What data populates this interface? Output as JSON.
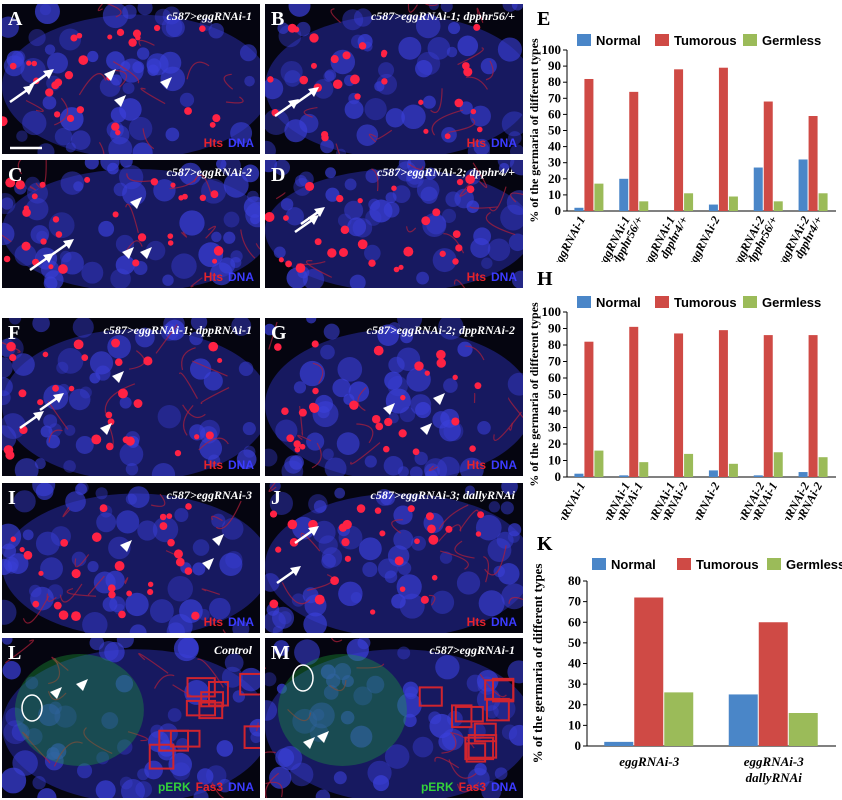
{
  "panels": [
    {
      "id": "A",
      "label": "A",
      "title": "c587>eggRNAi-1",
      "stains": [
        {
          "text": "Hts",
          "color": "red"
        },
        {
          "text": "DNA",
          "color": "blue"
        }
      ],
      "arrows": 2,
      "arrowheads": 3
    },
    {
      "id": "B",
      "label": "B",
      "title": "c587>eggRNAi-1; dpphr56/+",
      "stains": [
        {
          "text": "Hts",
          "color": "red"
        },
        {
          "text": "DNA",
          "color": "blue"
        }
      ],
      "arrows": 2,
      "arrowheads": 0
    },
    {
      "id": "C",
      "label": "C",
      "title": "c587>eggRNAi-2",
      "stains": [
        {
          "text": "Hts",
          "color": "red"
        },
        {
          "text": "DNA",
          "color": "blue"
        }
      ],
      "arrows": 2,
      "arrowheads": 3
    },
    {
      "id": "D",
      "label": "D",
      "title": "c587>eggRNAi-2; dpphr4/+",
      "stains": [
        {
          "text": "Hts",
          "color": "red"
        },
        {
          "text": "DNA",
          "color": "blue"
        }
      ],
      "arrows": 2,
      "arrowheads": 0
    },
    {
      "id": "F",
      "label": "F",
      "title": "c587>eggRNAi-1; dppRNAi-1",
      "stains": [
        {
          "text": "Hts",
          "color": "red"
        },
        {
          "text": "DNA",
          "color": "blue"
        }
      ],
      "arrows": 2,
      "arrowheads": 2
    },
    {
      "id": "G",
      "label": "G",
      "title": "c587>eggRNAi-2; dppRNAi-2",
      "stains": [
        {
          "text": "Hts",
          "color": "red"
        },
        {
          "text": "DNA",
          "color": "blue"
        }
      ],
      "arrows": 0,
      "arrowheads": 3
    },
    {
      "id": "I",
      "label": "I",
      "title": "c587>eggRNAi-3",
      "stains": [
        {
          "text": "Hts",
          "color": "red"
        },
        {
          "text": "DNA",
          "color": "blue"
        }
      ],
      "arrows": 0,
      "arrowheads": 3
    },
    {
      "id": "J",
      "label": "J",
      "title": "c587>eggRNAi-3; dallyRNAi",
      "stains": [
        {
          "text": "Hts",
          "color": "red"
        },
        {
          "text": "DNA",
          "color": "blue"
        }
      ],
      "arrows": 2,
      "arrowheads": 0
    },
    {
      "id": "L",
      "label": "L",
      "title": "Control",
      "stains": [
        {
          "text": "pERK",
          "color": "green"
        },
        {
          "text": "Fas3",
          "color": "red"
        },
        {
          "text": "DNA",
          "color": "blue"
        }
      ],
      "arrows": 0,
      "arrowheads": 2
    },
    {
      "id": "M",
      "label": "M",
      "title": "c587>eggRNAi-1",
      "stains": [
        {
          "text": "pERK",
          "color": "green"
        },
        {
          "text": "Fas3",
          "color": "red"
        },
        {
          "text": "DNA",
          "color": "blue"
        }
      ],
      "arrows": 0,
      "arrowheads": 2
    }
  ],
  "colors": {
    "normal": "#4a86c8",
    "tumorous": "#cf4a45",
    "germless": "#9bbb59"
  },
  "chart_data": [
    {
      "panel": "E",
      "type": "bar",
      "ylabel": "% of the germaria of different types",
      "ylim": [
        0,
        100
      ],
      "yticks": [
        0,
        10,
        20,
        30,
        40,
        50,
        60,
        70,
        80,
        90,
        100
      ],
      "categories": [
        [
          "eggRNAi-1"
        ],
        [
          "eggRNAi-1",
          "dpphr56/+"
        ],
        [
          "eggRNAi-1",
          "dpphr4/+"
        ],
        [
          "eggRNAi-2"
        ],
        [
          "eggRNAi-2",
          "dpphr56/+"
        ],
        [
          "eggRNAi-2",
          "dpphr4/+"
        ]
      ],
      "series": [
        {
          "name": "Normal",
          "values": [
            2,
            20,
            0,
            4,
            27,
            32
          ]
        },
        {
          "name": "Tumorous",
          "values": [
            82,
            74,
            88,
            89,
            68,
            59
          ]
        },
        {
          "name": "Germless",
          "values": [
            17,
            6,
            11,
            9,
            6,
            11
          ]
        }
      ]
    },
    {
      "panel": "H",
      "type": "bar",
      "ylabel": "% of the germaria of different types",
      "ylim": [
        0,
        100
      ],
      "yticks": [
        0,
        10,
        20,
        30,
        40,
        50,
        60,
        70,
        80,
        90,
        100
      ],
      "categories": [
        [
          "eggRNAi-1"
        ],
        [
          "eggRNAi-1",
          "dppRNAi-1"
        ],
        [
          "eggRNAi-1",
          "dppRNAi-2"
        ],
        [
          "eggRNAi-2"
        ],
        [
          "eggRNAi-2",
          "dppRNAi-1"
        ],
        [
          "eggRNAi-2",
          "dppRNAi-2"
        ]
      ],
      "series": [
        {
          "name": "Normal",
          "values": [
            2,
            1,
            0,
            4,
            1,
            3
          ]
        },
        {
          "name": "Tumorous",
          "values": [
            82,
            91,
            87,
            89,
            86,
            86
          ]
        },
        {
          "name": "Germless",
          "values": [
            16,
            9,
            14,
            8,
            15,
            12
          ]
        }
      ]
    },
    {
      "panel": "K",
      "type": "bar",
      "ylabel": "% of the germaria of different types",
      "ylim": [
        0,
        80
      ],
      "yticks": [
        0,
        10,
        20,
        30,
        40,
        50,
        60,
        70,
        80
      ],
      "categories": [
        [
          "eggRNAi-3"
        ],
        [
          "eggRNAi-3",
          "dallyRNAi"
        ]
      ],
      "series": [
        {
          "name": "Normal",
          "values": [
            2,
            25
          ]
        },
        {
          "name": "Tumorous",
          "values": [
            72,
            60
          ]
        },
        {
          "name": "Germless",
          "values": [
            26,
            16
          ]
        }
      ]
    }
  ]
}
